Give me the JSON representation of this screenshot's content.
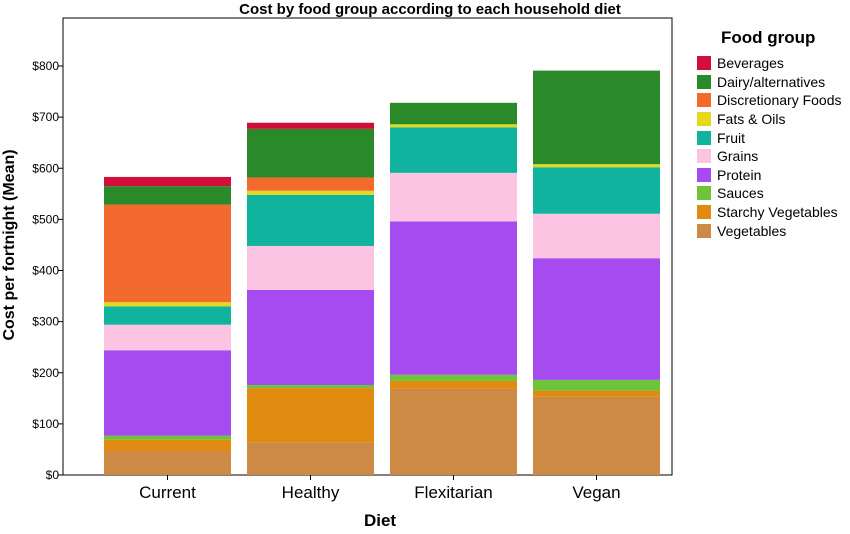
{
  "chart_data": {
    "type": "bar",
    "stacked": true,
    "title": "Cost by food group according to each household diet",
    "xlabel": "Diet",
    "ylabel": "Cost per fortnight (Mean)",
    "ylim": [
      0,
      800
    ],
    "yticks": [
      0,
      100,
      200,
      300,
      400,
      500,
      600,
      700,
      800
    ],
    "ytick_labels": [
      "$0",
      "$100",
      "$200",
      "$300",
      "$400",
      "$500",
      "$600",
      "$700",
      "$800"
    ],
    "categories": [
      "Current",
      "Healthy",
      "Flexitarian",
      "Vegan"
    ],
    "legend_title": "Food group",
    "legend_position": "right",
    "grid": false,
    "series": [
      {
        "name": "Vegetables",
        "color": "#CC8A45",
        "values": [
          47,
          64,
          169,
          153
        ]
      },
      {
        "name": "Starchy Vegetables",
        "color": "#E08A10",
        "values": [
          22,
          106,
          15,
          12
        ]
      },
      {
        "name": "Sauces",
        "color": "#6DC33A",
        "values": [
          8,
          6,
          12,
          21
        ]
      },
      {
        "name": "Protein",
        "color": "#A64BF0",
        "values": [
          167,
          186,
          300,
          238
        ]
      },
      {
        "name": "Grains",
        "color": "#FBC4E2",
        "values": [
          50,
          86,
          95,
          87
        ]
      },
      {
        "name": "Fruit",
        "color": "#0FB39E",
        "values": [
          36,
          100,
          89,
          91
        ]
      },
      {
        "name": "Fats & Oils",
        "color": "#E3D81A",
        "values": [
          8,
          8,
          6,
          6
        ]
      },
      {
        "name": "Discretionary Foods",
        "color": "#F26A2E",
        "values": [
          191,
          26,
          0,
          0
        ]
      },
      {
        "name": "Dairy/alternatives",
        "color": "#2A8A2A",
        "values": [
          36,
          95,
          42,
          183
        ]
      },
      {
        "name": "Beverages",
        "color": "#D20F3A",
        "values": [
          18,
          12,
          0,
          0
        ]
      }
    ],
    "legend_order": [
      "Beverages",
      "Dairy/alternatives",
      "Discretionary Foods",
      "Fats & Oils",
      "Fruit",
      "Grains",
      "Protein",
      "Sauces",
      "Starchy Vegetables",
      "Vegetables"
    ]
  }
}
